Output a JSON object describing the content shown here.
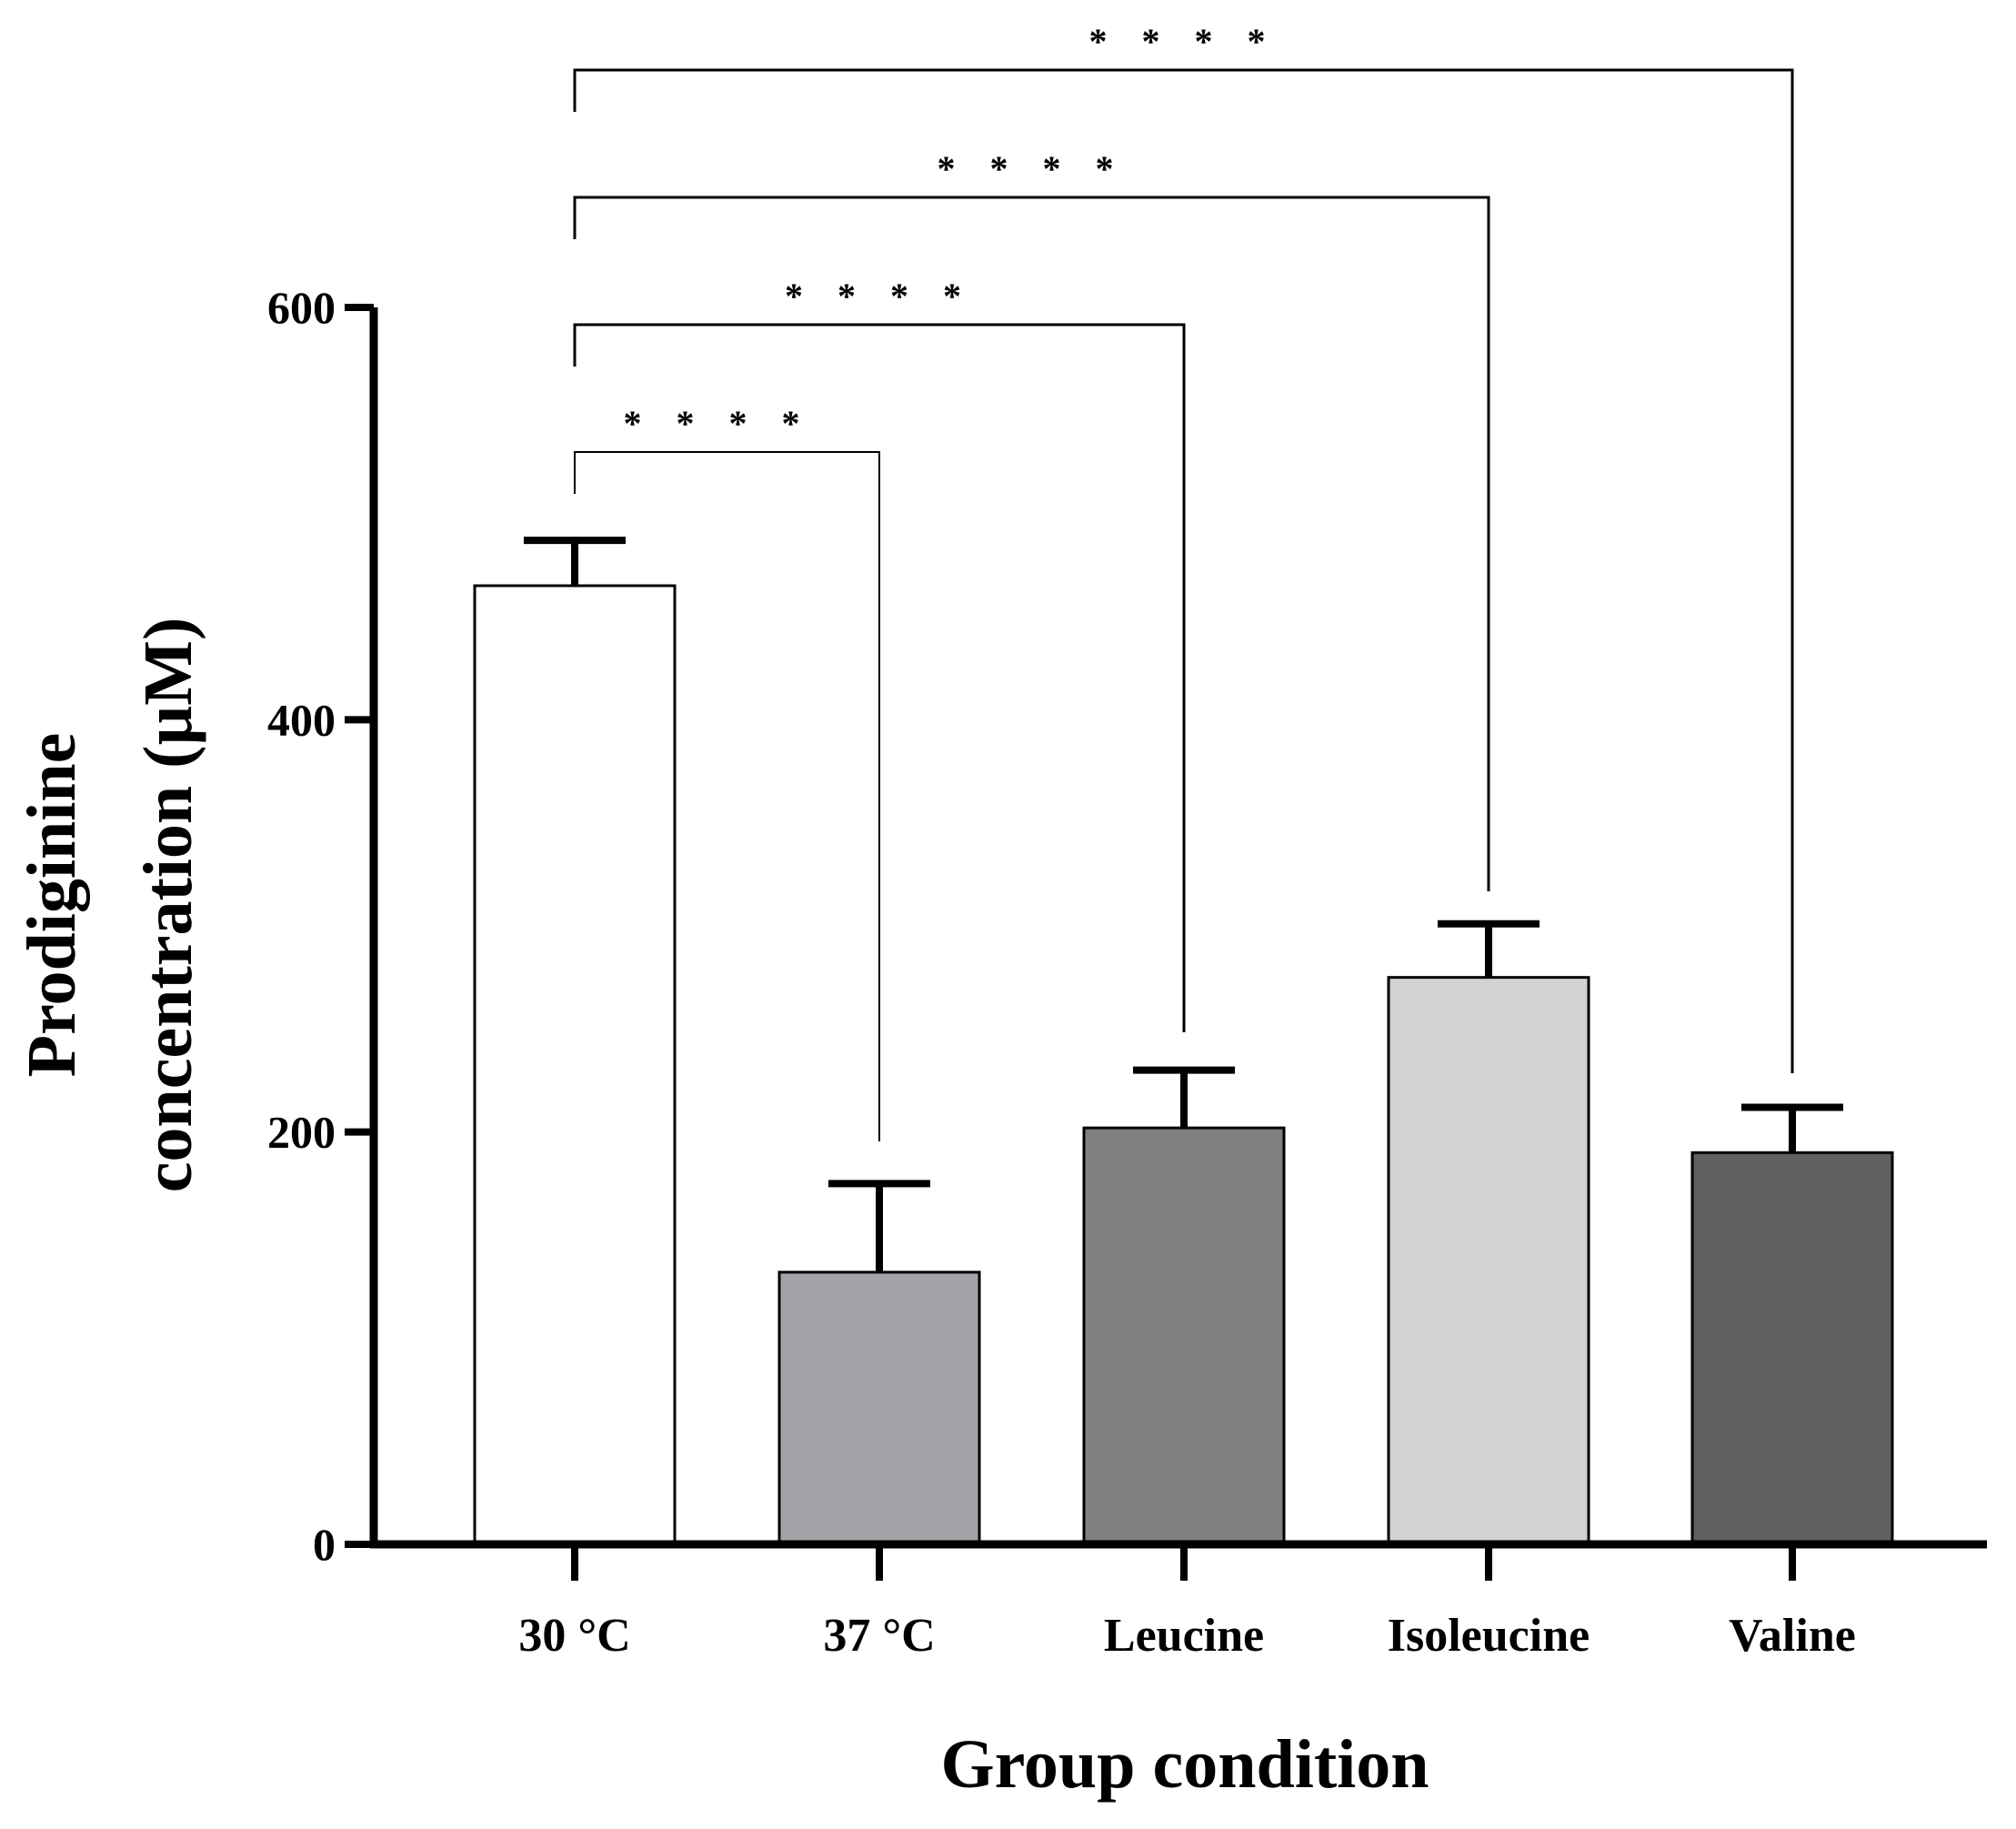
{
  "chart_data": {
    "type": "bar",
    "title": "",
    "xlabel": "Group condition",
    "ylabel_lines": [
      "Prodiginine",
      "concentration (µM)"
    ],
    "categories": [
      "30 °C",
      "37 °C",
      "Leucine",
      "Isoleucine",
      "Valine"
    ],
    "values": [
      465,
      132,
      202,
      275,
      190
    ],
    "errors": [
      22,
      43,
      28,
      26,
      22
    ],
    "bar_colors": [
      "#ffffff",
      "#a4a4a8",
      "#808080",
      "#d3d3d3",
      "#606060"
    ],
    "ylim": [
      0,
      600
    ],
    "yticks": [
      0,
      200,
      400,
      600
    ],
    "ytick_labels": [
      "0",
      "200",
      "400",
      "600"
    ],
    "grid": false,
    "legend": "none",
    "significance": [
      {
        "from": "30 °C",
        "to": "37 °C",
        "label": "****"
      },
      {
        "from": "30 °C",
        "to": "Leucine",
        "label": "****"
      },
      {
        "from": "30 °C",
        "to": "Isoleucine",
        "label": "****"
      },
      {
        "from": "30 °C",
        "to": "Valine",
        "label": "****"
      }
    ]
  }
}
